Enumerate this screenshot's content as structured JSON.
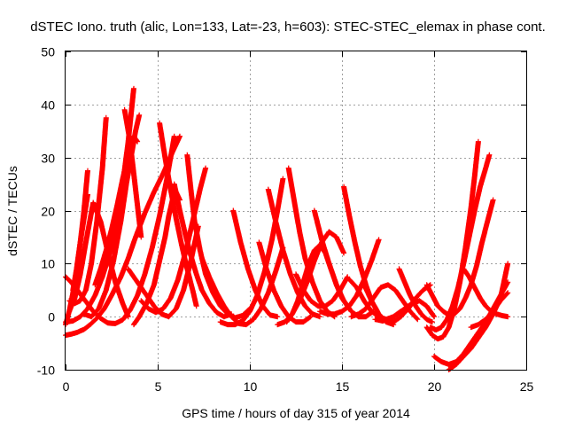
{
  "chart_data": {
    "type": "scatter",
    "title": "dSTEC Iono. truth (alic, Lon=133, Lat=-23, h=603): STEC-STEC_elemax in phase cont.",
    "xlabel": "GPS time / hours of day 315 of year 2014",
    "ylabel": "dSTEC  / TECUs",
    "xlim": [
      0,
      25
    ],
    "ylim": [
      -10,
      50
    ],
    "xticks": [
      0,
      5,
      10,
      15,
      20,
      25
    ],
    "yticks": [
      -10,
      0,
      10,
      20,
      30,
      40,
      50
    ],
    "grid": true,
    "legend": "none",
    "marker": "+",
    "series_color": "#ff0000",
    "arcs": [
      {
        "name": "arc-01",
        "x": [
          0.0,
          0.3,
          0.6,
          1.0,
          1.3,
          1.7,
          2.1,
          2.5,
          3.0,
          3.4,
          3.8,
          4.3,
          4.8,
          5.3,
          5.8,
          6.2
        ],
        "y": [
          -3.5,
          -3.3,
          -3.0,
          -2.4,
          -1.6,
          -0.3,
          1.5,
          4.0,
          7.5,
          11.0,
          15.0,
          19.5,
          23.5,
          27.0,
          31.0,
          34.0
        ]
      },
      {
        "name": "arc-02",
        "x": [
          0.0,
          0.4,
          0.8,
          1.2,
          1.6,
          2.0,
          2.4,
          2.8,
          3.1,
          3.4,
          3.7
        ],
        "y": [
          -1.0,
          -0.8,
          0.0,
          1.5,
          4.0,
          7.5,
          12.0,
          18.0,
          25.0,
          33.0,
          43.0
        ]
      },
      {
        "name": "arc-03",
        "x": [
          0.0,
          0.3,
          0.6,
          0.9,
          1.2,
          1.5,
          1.9,
          2.3,
          2.7,
          3.1,
          3.5,
          3.9,
          4.3,
          4.7,
          5.1,
          5.5,
          5.9
        ],
        "y": [
          7.5,
          6.5,
          5.2,
          3.8,
          2.4,
          1.0,
          -0.3,
          -1.2,
          -1.3,
          -0.6,
          1.2,
          4.0,
          8.0,
          13.0,
          19.0,
          26.0,
          34.0
        ]
      },
      {
        "name": "arc-04",
        "x": [
          0.0,
          0.2,
          0.4,
          0.6,
          0.8,
          1.0,
          1.2
        ],
        "y": [
          -1.5,
          1.0,
          4.5,
          9.0,
          14.0,
          20.0,
          27.5
        ]
      },
      {
        "name": "arc-05",
        "x": [
          0.2,
          0.5,
          0.8,
          1.1,
          1.4,
          1.7,
          2.0,
          2.2
        ],
        "y": [
          3.0,
          2.5,
          3.0,
          5.0,
          10.0,
          18.0,
          28.0,
          37.5
        ]
      },
      {
        "name": "arc-06",
        "x": [
          0.2,
          0.5,
          0.8,
          1.1,
          1.5,
          1.9,
          2.3,
          2.7,
          3.1,
          3.4
        ],
        "y": [
          1.0,
          3.5,
          8.0,
          14.0,
          21.5,
          18.0,
          12.0,
          6.5,
          2.5,
          0.0
        ]
      },
      {
        "name": "arc-07",
        "x": [
          0.4,
          0.6,
          0.8,
          1.0,
          1.2
        ],
        "y": [
          5.0,
          9.0,
          14.0,
          18.5,
          23.0
        ]
      },
      {
        "name": "arc-08",
        "x": [
          1.0,
          1.4,
          1.8,
          2.2,
          2.6,
          3.0,
          3.3,
          3.6,
          3.8,
          4.0
        ],
        "y": [
          0.5,
          0.0,
          1.5,
          5.0,
          10.5,
          18.0,
          25.0,
          31.0,
          35.0,
          38.0
        ]
      },
      {
        "name": "arc-09",
        "x": [
          1.6,
          1.9,
          2.2,
          2.5,
          2.8,
          3.1,
          3.4,
          3.7,
          3.9
        ],
        "y": [
          6.0,
          9.0,
          12.5,
          16.5,
          21.0,
          26.0,
          30.5,
          34.0,
          33.0
        ]
      },
      {
        "name": "arc-10",
        "x": [
          3.2,
          3.5,
          3.7,
          3.9,
          4.1
        ],
        "y": [
          39.0,
          33.0,
          27.0,
          21.0,
          15.0
        ]
      },
      {
        "name": "arc-11",
        "x": [
          3.4,
          3.7,
          4.0,
          4.4,
          4.8,
          5.2,
          5.6,
          6.0,
          6.4,
          6.8,
          7.2
        ],
        "y": [
          9.0,
          7.5,
          6.0,
          4.0,
          2.0,
          0.5,
          0.0,
          1.5,
          5.0,
          10.5,
          17.0
        ]
      },
      {
        "name": "arc-12",
        "x": [
          3.7,
          4.0,
          4.4,
          4.8,
          5.1,
          5.4,
          5.6,
          5.8,
          6.0,
          6.2
        ],
        "y": [
          -1.5,
          0.0,
          2.5,
          6.0,
          10.5,
          15.0,
          19.0,
          22.0,
          23.5,
          22.0
        ]
      },
      {
        "name": "arc-13",
        "x": [
          4.1,
          4.5,
          4.9,
          5.3,
          5.7,
          6.1,
          6.5,
          6.9,
          7.3,
          7.6
        ],
        "y": [
          3.0,
          1.5,
          0.8,
          1.5,
          3.5,
          7.0,
          12.0,
          18.0,
          24.0,
          28.0
        ]
      },
      {
        "name": "arc-14",
        "x": [
          5.1,
          5.4,
          5.7,
          6.0,
          6.3,
          6.6,
          6.9,
          7.1
        ],
        "y": [
          36.5,
          30.0,
          24.0,
          18.5,
          13.5,
          9.0,
          5.0,
          2.0
        ]
      },
      {
        "name": "arc-15",
        "x": [
          5.9,
          6.2,
          6.5,
          6.8,
          7.1,
          7.4,
          7.8,
          8.2,
          8.6,
          9.0
        ],
        "y": [
          25.0,
          20.0,
          15.5,
          11.5,
          8.0,
          5.0,
          2.5,
          0.8,
          0.0,
          0.5
        ]
      },
      {
        "name": "arc-16",
        "x": [
          6.6,
          6.8,
          7.0,
          7.3,
          7.6,
          8.0,
          8.4,
          8.8,
          9.2,
          9.6,
          10.0
        ],
        "y": [
          30.5,
          24.0,
          18.0,
          12.5,
          8.0,
          4.5,
          2.0,
          0.5,
          -0.2,
          0.2,
          1.5
        ]
      },
      {
        "name": "arc-17",
        "x": [
          7.4,
          7.8,
          8.2,
          8.6,
          9.0,
          9.4,
          9.8,
          10.2,
          10.6,
          11.0,
          11.4,
          11.8
        ],
        "y": [
          11.0,
          7.5,
          4.5,
          2.0,
          0.0,
          -1.3,
          -1.5,
          -0.5,
          1.5,
          4.5,
          8.5,
          13.0
        ]
      },
      {
        "name": "arc-18",
        "x": [
          8.4,
          8.8,
          9.2,
          9.6,
          10.0,
          10.4,
          10.8,
          11.2,
          11.5,
          11.8
        ],
        "y": [
          -1.0,
          -1.5,
          -1.5,
          -0.8,
          1.0,
          4.0,
          8.5,
          14.5,
          20.0,
          26.0
        ]
      },
      {
        "name": "arc-19",
        "x": [
          9.1,
          9.5,
          9.9,
          10.3,
          10.7,
          11.1,
          11.5
        ],
        "y": [
          20.0,
          14.0,
          9.0,
          5.0,
          2.0,
          0.3,
          0.0
        ]
      },
      {
        "name": "arc-20",
        "x": [
          10.5,
          10.9,
          11.3,
          11.7,
          12.1,
          12.5,
          12.9,
          13.3
        ],
        "y": [
          14.0,
          9.0,
          5.0,
          2.0,
          0.0,
          -1.0,
          -1.0,
          0.0
        ]
      },
      {
        "name": "arc-21",
        "x": [
          11.0,
          11.4,
          11.8,
          12.2,
          12.6,
          13.0,
          13.4,
          13.8
        ],
        "y": [
          24.0,
          18.0,
          12.5,
          8.0,
          4.5,
          2.0,
          0.5,
          0.0
        ]
      },
      {
        "name": "arc-22",
        "x": [
          11.5,
          11.9,
          12.3,
          12.7,
          13.1,
          13.5,
          13.9,
          14.3,
          14.7,
          15.1
        ],
        "y": [
          -1.5,
          -1.0,
          0.5,
          3.0,
          6.5,
          10.5,
          14.0,
          16.0,
          15.0,
          12.0
        ]
      },
      {
        "name": "arc-23",
        "x": [
          12.0,
          12.3,
          12.6,
          12.9,
          13.2,
          13.5,
          13.8,
          14.1,
          14.4,
          14.7,
          15.0,
          15.4
        ],
        "y": [
          -1.0,
          0.5,
          3.0,
          6.5,
          10.0,
          12.5,
          13.5,
          12.0,
          9.0,
          6.0,
          3.5,
          1.5
        ]
      },
      {
        "name": "arc-24",
        "x": [
          12.1,
          12.4,
          12.7,
          13.0,
          13.4,
          13.8,
          14.2,
          14.6
        ],
        "y": [
          28.0,
          22.0,
          16.0,
          11.0,
          6.5,
          3.0,
          1.0,
          0.0
        ]
      },
      {
        "name": "arc-25",
        "x": [
          12.5,
          12.9,
          13.3,
          13.7,
          14.1,
          14.5,
          14.9,
          15.3
        ],
        "y": [
          8.0,
          5.0,
          3.0,
          2.0,
          2.0,
          3.0,
          5.0,
          7.5
        ]
      },
      {
        "name": "arc-26",
        "x": [
          13.5,
          13.9,
          14.3,
          14.7,
          15.1,
          15.5,
          15.9,
          16.3,
          16.7
        ],
        "y": [
          20.0,
          14.5,
          10.0,
          6.0,
          3.0,
          1.0,
          0.0,
          0.0,
          1.0
        ]
      },
      {
        "name": "arc-27",
        "x": [
          13.8,
          14.2,
          14.6,
          15.0,
          15.4,
          15.8,
          16.2,
          16.6,
          17.0
        ],
        "y": [
          1.0,
          0.5,
          0.5,
          1.0,
          2.0,
          4.0,
          7.0,
          10.5,
          14.5
        ]
      },
      {
        "name": "arc-28",
        "x": [
          15.1,
          15.4,
          15.7,
          16.0,
          16.3,
          16.6,
          17.0,
          17.4,
          17.8
        ],
        "y": [
          24.5,
          19.0,
          14.0,
          9.5,
          6.0,
          3.0,
          0.5,
          -1.0,
          -1.5
        ]
      },
      {
        "name": "arc-29",
        "x": [
          15.4,
          15.8,
          16.2,
          16.6,
          17.0,
          17.4,
          17.8,
          18.2
        ],
        "y": [
          7.0,
          5.5,
          3.0,
          1.0,
          0.0,
          -0.5,
          0.0,
          1.0
        ]
      },
      {
        "name": "arc-30",
        "x": [
          15.5,
          15.9,
          16.3,
          16.7,
          17.1,
          17.5,
          17.9,
          18.3,
          18.7,
          19.1
        ],
        "y": [
          0.0,
          0.5,
          1.5,
          3.5,
          5.5,
          6.0,
          5.0,
          3.0,
          1.0,
          -0.5
        ]
      },
      {
        "name": "arc-31",
        "x": [
          16.2,
          16.6,
          17.0,
          17.4,
          17.8,
          18.2,
          18.6,
          19.0,
          19.4,
          19.8
        ],
        "y": [
          6.0,
          3.0,
          0.5,
          -1.0,
          -1.0,
          0.0,
          1.5,
          3.5,
          5.0,
          6.0
        ]
      },
      {
        "name": "arc-32",
        "x": [
          16.8,
          17.2,
          17.6,
          18.0,
          18.4,
          18.8,
          19.2,
          19.6,
          20.0
        ],
        "y": [
          -0.5,
          -0.8,
          -0.5,
          0.5,
          1.5,
          2.5,
          3.0,
          2.0,
          0.0
        ]
      },
      {
        "name": "arc-33",
        "x": [
          18.1,
          18.4,
          18.7,
          19.0,
          19.3,
          19.6,
          19.9
        ],
        "y": [
          9.0,
          6.5,
          4.0,
          2.0,
          0.5,
          -0.5,
          -1.0
        ]
      },
      {
        "name": "arc-34",
        "x": [
          19.6,
          19.9,
          20.2,
          20.5,
          20.8,
          21.1,
          21.4,
          21.7,
          22.0,
          22.2,
          22.4
        ],
        "y": [
          -2.0,
          -3.5,
          -4.2,
          -3.8,
          -2.0,
          1.5,
          6.5,
          13.0,
          20.5,
          26.5,
          33.0
        ]
      },
      {
        "name": "arc-35",
        "x": [
          19.8,
          20.1,
          20.4,
          20.7,
          21.0,
          21.3,
          21.6,
          21.9,
          22.2,
          22.5,
          22.8,
          23.0
        ],
        "y": [
          -2.0,
          -2.5,
          -2.0,
          -0.5,
          2.0,
          5.5,
          10.0,
          15.0,
          20.0,
          24.5,
          28.0,
          30.5
        ]
      },
      {
        "name": "arc-36",
        "x": [
          19.6,
          19.9,
          20.2,
          20.5,
          20.8,
          21.1,
          21.4,
          21.7,
          22.0,
          22.3,
          22.6,
          22.9,
          23.2
        ],
        "y": [
          6.0,
          4.0,
          2.0,
          1.0,
          0.3,
          0.5,
          1.5,
          3.5,
          6.0,
          9.5,
          14.0,
          18.0,
          22.0
        ]
      },
      {
        "name": "arc-37",
        "x": [
          20.0,
          20.4,
          20.8,
          21.2,
          21.6,
          22.0,
          22.4,
          22.8,
          23.2,
          23.6,
          24.0
        ],
        "y": [
          -7.5,
          -8.5,
          -9.0,
          -8.5,
          -7.0,
          -5.0,
          -3.0,
          -1.0,
          1.5,
          4.0,
          6.5
        ]
      },
      {
        "name": "arc-38",
        "x": [
          20.8,
          21.2,
          21.6,
          22.0,
          22.4,
          22.8,
          23.2,
          23.6,
          24.0
        ],
        "y": [
          -10.0,
          -9.0,
          -7.5,
          -6.0,
          -4.0,
          -2.0,
          0.5,
          3.5,
          10.0
        ]
      },
      {
        "name": "arc-39",
        "x": [
          21.6,
          21.9,
          22.2,
          22.5,
          22.8,
          23.1,
          23.4,
          23.7,
          24.0
        ],
        "y": [
          9.0,
          7.5,
          5.5,
          3.5,
          2.0,
          1.0,
          0.5,
          0.2,
          0.0
        ]
      },
      {
        "name": "arc-40",
        "x": [
          22.0,
          22.4,
          22.8,
          23.2,
          23.6,
          24.0
        ],
        "y": [
          -2.0,
          -1.5,
          -0.5,
          1.0,
          3.0,
          4.5
        ]
      }
    ]
  }
}
